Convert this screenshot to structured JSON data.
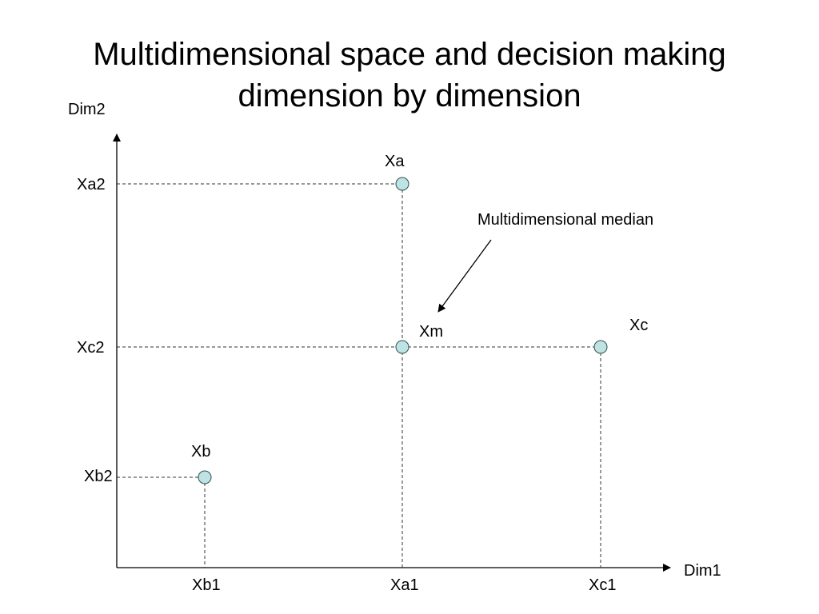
{
  "title": {
    "line1": "Multidimensional space and decision making",
    "line2": "dimension by dimension"
  },
  "axes": {
    "x_label": "Dim1",
    "y_label": "Dim2"
  },
  "x_ticks": [
    "Xb1",
    "Xa1",
    "Xc1"
  ],
  "y_ticks": [
    "Xa2",
    "Xc2",
    "Xb2"
  ],
  "points": [
    {
      "name": "Xa"
    },
    {
      "name": "Xb"
    },
    {
      "name": "Xc"
    },
    {
      "name": "Xm"
    }
  ],
  "annotation": {
    "text": "Multidimensional median"
  },
  "colors": {
    "point_fill": "#bfe3e3",
    "point_stroke": "#2f4f4f",
    "line": "#000000"
  }
}
